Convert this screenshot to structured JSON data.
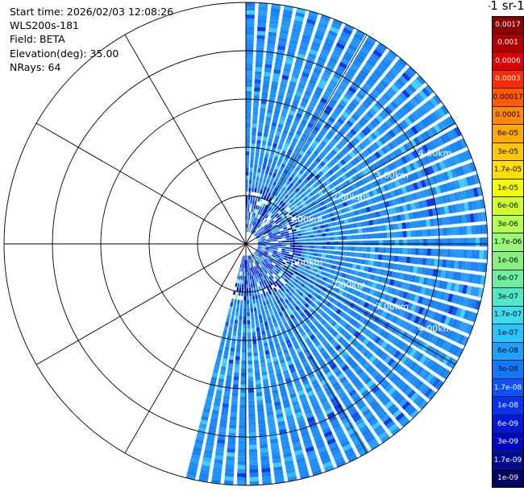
{
  "header": {
    "lines": [
      "Start time: 2026/02/03 12:08:26",
      "WLS200s-181",
      "Field: BETA",
      "Elevation(deg): 35.00",
      "NRays: 64"
    ]
  },
  "colorbar": {
    "title": "-1 sr-1",
    "labels": [
      "0.0017",
      "0.001",
      "0.0006",
      "0.0003",
      "0.00017",
      "0.0001",
      "6e-05",
      "3e-05",
      "1.7e-05",
      "1e-05",
      "6e-06",
      "3e-06",
      "1.7e-06",
      "1e-06",
      "6e-07",
      "3e-07",
      "1.7e-07",
      "1e-07",
      "6e-08",
      "3e-08",
      "1.7e-08",
      "1e-08",
      "6e-09",
      "3e-09",
      "1.7e-09",
      "1e-09"
    ],
    "colors": [
      "#8b0000",
      "#b00000",
      "#dd0000",
      "#ff2a00",
      "#ff5a00",
      "#ff8800",
      "#ffaa00",
      "#ffc800",
      "#ffe000",
      "#f4ff00",
      "#d0ff30",
      "#b4ff50",
      "#98f878",
      "#88f080",
      "#6cf0a0",
      "#50e8c8",
      "#3cdcf0",
      "#28c4ff",
      "#1ea0ff",
      "#1478ff",
      "#0c50ff",
      "#0830f0",
      "#0418d8",
      "#0008c0",
      "#000c90",
      "#000060"
    ],
    "label_dark": [
      true,
      true,
      true,
      true,
      false,
      false,
      false,
      false,
      false,
      false,
      false,
      false,
      false,
      false,
      false,
      false,
      false,
      false,
      false,
      false,
      true,
      true,
      true,
      true,
      true,
      true
    ]
  },
  "chart_data": {
    "type": "heatmap",
    "projection": "polar-ppi",
    "field": "BETA",
    "nrays": 64,
    "range_rings_km": [
      1,
      2,
      3,
      4,
      5
    ],
    "range_ring_labels_visible": [
      "1.00km",
      "2.00km",
      "3.00km",
      "4.00km",
      "5."
    ],
    "upper_ring_labels": [
      "1.00km",
      "2.00km",
      "3.00km",
      "4.00km",
      "5."
    ],
    "lower_ring_labels": [
      "1.00km",
      "2.00km",
      "3.00km",
      "4.00km"
    ],
    "max_range_km": 5,
    "azimuth_coverage_deg": [
      0,
      195
    ],
    "azimuth_gridlines_deg": [
      0,
      30,
      60,
      90,
      120,
      150,
      180,
      210,
      240,
      270,
      300,
      330
    ],
    "dominant_value_range": [
      "3e-08",
      "1e-07"
    ],
    "near_range_value_range": [
      "1e-09",
      "1.7e-06"
    ],
    "grid": true
  }
}
